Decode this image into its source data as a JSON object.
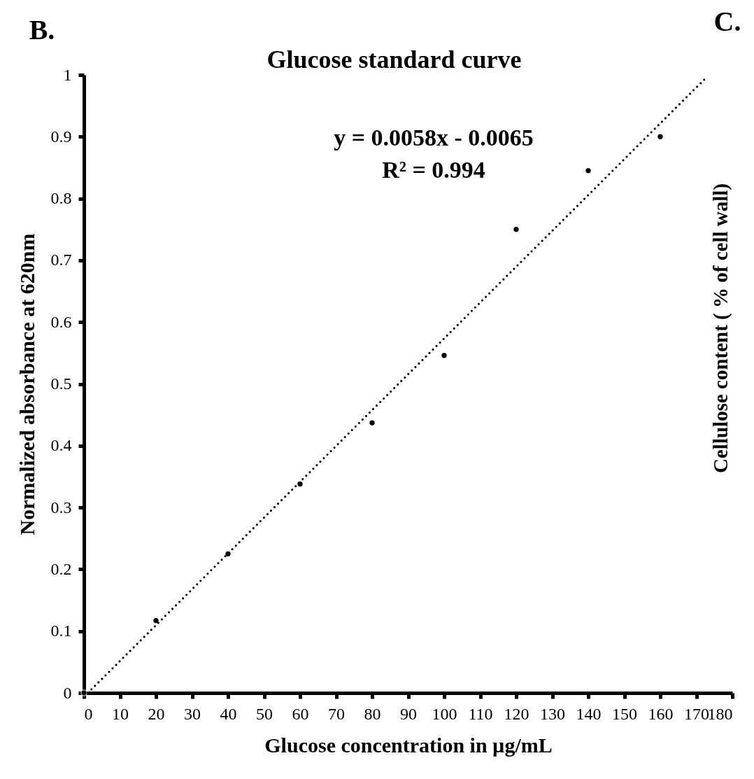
{
  "chart_data": {
    "type": "scatter",
    "title": "Glucose standard curve",
    "xlabel": "Glucose concentration in µg/mL",
    "ylabel": "Normalized absorbance at 620nm",
    "annotations": [
      "y = 0.0058x - 0.0065",
      "R² = 0.994",
      "B.",
      "C.",
      "Cellulose content ( % of cell wall)"
    ],
    "series": [
      {
        "type": "scatter",
        "color": "#000000",
        "marker": "circle",
        "x": [
          0,
          20,
          40,
          60,
          80,
          100,
          120,
          140,
          160
        ],
        "values": [
          0,
          0.117,
          0.225,
          0.338,
          0.437,
          0.546,
          0.75,
          0.845,
          0.9
        ]
      },
      {
        "type": "line",
        "color": "#000000",
        "line_style": "dotted",
        "marker": "none",
        "x": [
          1.1,
          173
        ],
        "values": [
          0,
          0.997
        ]
      }
    ],
    "xlim": [
      0,
      180
    ],
    "xticks": [
      0,
      10,
      20,
      30,
      40,
      50,
      60,
      70,
      80,
      90,
      100,
      110,
      120,
      130,
      140,
      150,
      160,
      170,
      180
    ],
    "ylim": [
      0,
      1
    ],
    "yticks": [
      0,
      0.1,
      0.2,
      0.3,
      0.4,
      0.5,
      0.6,
      0.7,
      0.8,
      0.9,
      1
    ],
    "grid": false
  }
}
